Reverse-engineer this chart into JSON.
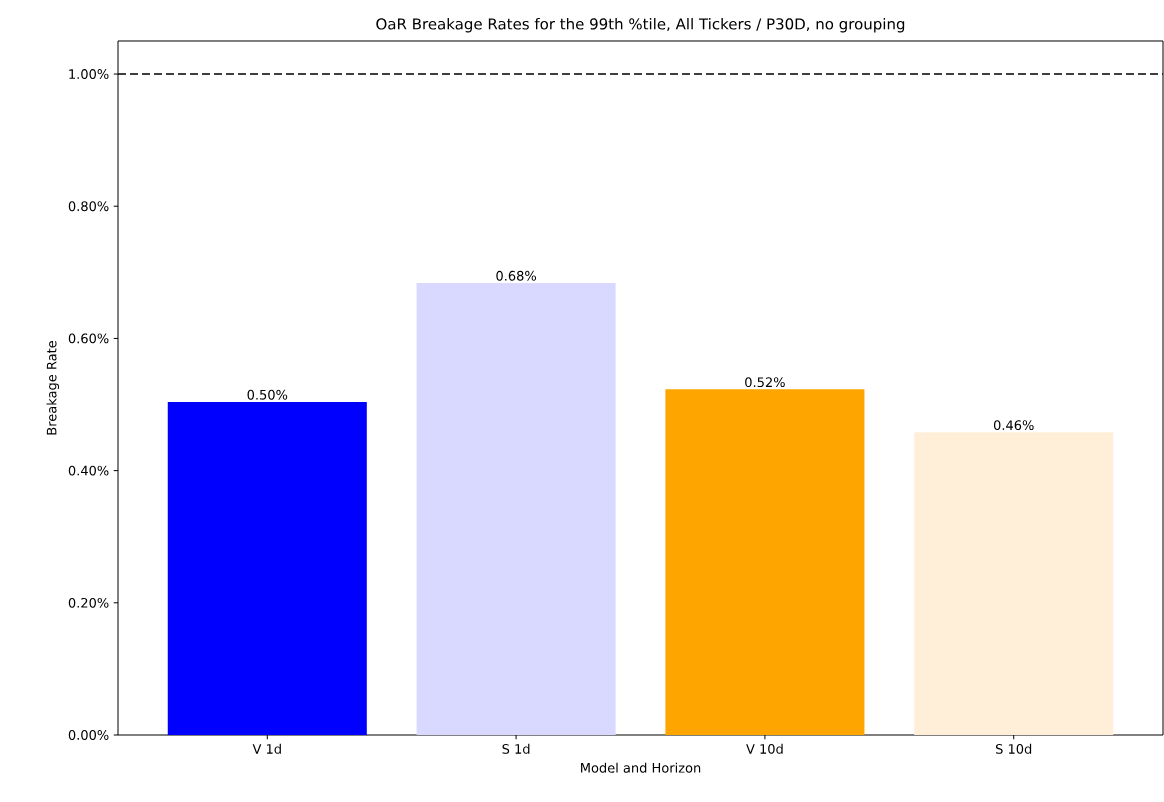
{
  "chart_data": {
    "type": "bar",
    "title": "OaR Breakage Rates for the 99th %tile, All Tickers / P30D, no grouping",
    "xlabel": "Model and Horizon",
    "ylabel": "Breakage Rate",
    "categories": [
      "V 1d",
      "S 1d",
      "V 10d",
      "S 10d"
    ],
    "values": [
      0.504,
      0.684,
      0.523,
      0.458
    ],
    "colors": [
      "#0000ff",
      "#d9d9ff",
      "#ffa500",
      "#ffefd9"
    ],
    "value_labels": [
      "0.50%",
      "0.68%",
      "0.52%",
      "0.46%"
    ],
    "ylim": [
      0,
      1.05
    ],
    "yticks": [
      {
        "value": 0,
        "label": "0.00%"
      },
      {
        "value": 0.2,
        "label": "0.20%"
      },
      {
        "value": 0.4,
        "label": "0.40%"
      },
      {
        "value": 0.6,
        "label": "0.60%"
      },
      {
        "value": 0.8,
        "label": "0.80%"
      },
      {
        "value": 1.0,
        "label": "1.00%"
      }
    ],
    "ref_lines": [
      {
        "axis": "y",
        "value": 1.0,
        "color": "#000000",
        "line_style": "dashed"
      }
    ]
  }
}
